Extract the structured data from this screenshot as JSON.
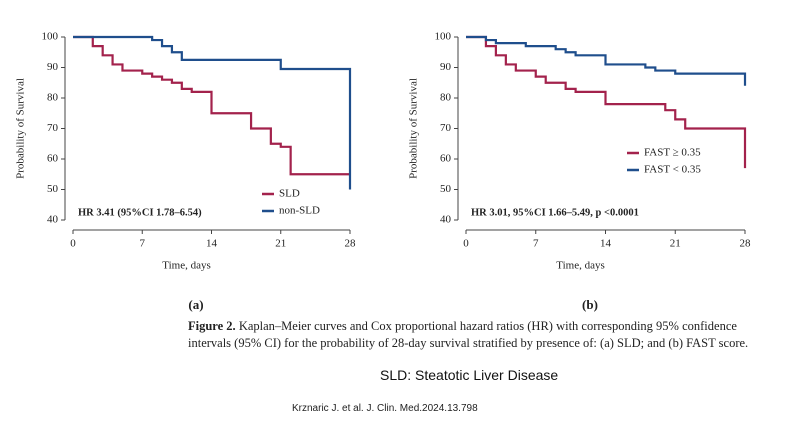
{
  "chart_data": [
    {
      "type": "step",
      "ylabel": "Probability of Survival",
      "xlabel": "Time, days",
      "annotation": "HR 3.41 (95%CI 1.78–6.54)",
      "xlim": [
        0,
        28
      ],
      "xticks": [
        0,
        7,
        14,
        21,
        28
      ],
      "ylim": [
        40,
        100
      ],
      "yticks": [
        40,
        50,
        60,
        70,
        80,
        90,
        100
      ],
      "legend": "lower right",
      "series": [
        {
          "name": "SLD",
          "color": "#a3224c",
          "x": [
            0,
            2,
            3,
            4,
            5,
            7,
            8,
            9,
            10,
            11,
            12,
            14,
            18,
            20,
            21,
            22,
            28
          ],
          "values": [
            100,
            97,
            94,
            91,
            89,
            88,
            87,
            86,
            85,
            83,
            82,
            75,
            70,
            65,
            64,
            55,
            55
          ]
        },
        {
          "name": "non-SLD",
          "color": "#1f4e8c",
          "x": [
            0,
            8,
            9,
            10,
            11,
            21,
            28
          ],
          "values": [
            100,
            99,
            97,
            95,
            92.5,
            89.5,
            50
          ]
        }
      ]
    },
    {
      "type": "step",
      "ylabel": "Probability of Survival",
      "xlabel": "Time, days",
      "annotation": "HR 3.01, 95%CI 1.66–5.49, p <0.0001",
      "xlim": [
        0,
        28
      ],
      "xticks": [
        0,
        7,
        14,
        21,
        28
      ],
      "ylim": [
        40,
        100
      ],
      "yticks": [
        40,
        50,
        60,
        70,
        80,
        90,
        100
      ],
      "legend": "center right",
      "series": [
        {
          "name": "FAST ≥ 0.35",
          "color": "#a3224c",
          "x": [
            0,
            2,
            3,
            4,
            5,
            7,
            8,
            10,
            11,
            14,
            20,
            21,
            22,
            28
          ],
          "values": [
            100,
            97,
            94,
            91,
            89,
            87,
            85,
            83,
            82,
            78,
            76,
            73,
            70,
            57
          ]
        },
        {
          "name": "FAST < 0.35",
          "color": "#1f4e8c",
          "x": [
            0,
            2,
            3,
            6,
            9,
            10,
            11,
            14,
            18,
            19,
            21,
            28
          ],
          "values": [
            100,
            99,
            98,
            97,
            96,
            95,
            94,
            91,
            90,
            89,
            88,
            84
          ]
        }
      ]
    }
  ],
  "panel_labels": [
    "(a)",
    "(b)"
  ],
  "caption_label": "Figure 2.",
  "caption_text": "Kaplan–Meier curves and Cox proportional hazard ratios (HR) with corresponding 95% confidence intervals (95% CI) for the probability of 28-day survival stratified by presence of: (a) SLD; and (b) FAST score.",
  "abbreviation": "SLD: Steatotic Liver Disease",
  "reference": "Krznaric J. et al. J. Clin. Med.2024.13.798"
}
